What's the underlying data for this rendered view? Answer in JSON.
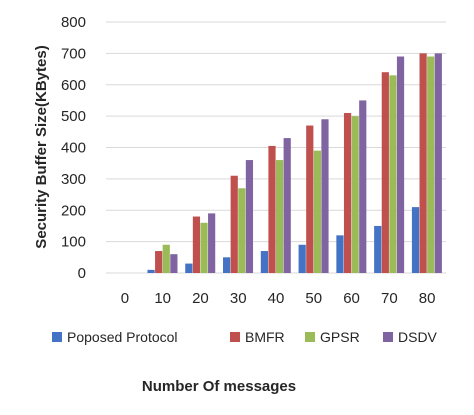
{
  "chart_data": {
    "type": "bar",
    "title": "",
    "xlabel": "Number Of messages",
    "ylabel": "Security Buffer Size(KBytes)",
    "categories": [
      "0",
      "10",
      "20",
      "30",
      "40",
      "50",
      "60",
      "70",
      "80"
    ],
    "ylim": [
      0,
      800
    ],
    "yticks": [
      0,
      100,
      200,
      300,
      400,
      500,
      600,
      700,
      800
    ],
    "grid": true,
    "legend_position": "bottom",
    "series": [
      {
        "name": "Poposed Protocol",
        "color": "#4472c4",
        "values": [
          0,
          10,
          30,
          50,
          70,
          90,
          120,
          150,
          210
        ]
      },
      {
        "name": "BMFR",
        "color": "#c0504d",
        "values": [
          0,
          70,
          180,
          310,
          405,
          470,
          510,
          640,
          700
        ]
      },
      {
        "name": "GPSR",
        "color": "#9bbb59",
        "values": [
          0,
          90,
          160,
          270,
          360,
          390,
          500,
          630,
          690
        ]
      },
      {
        "name": "DSDV",
        "color": "#8064a2",
        "values": [
          0,
          60,
          190,
          360,
          430,
          490,
          550,
          690,
          700
        ]
      }
    ]
  }
}
